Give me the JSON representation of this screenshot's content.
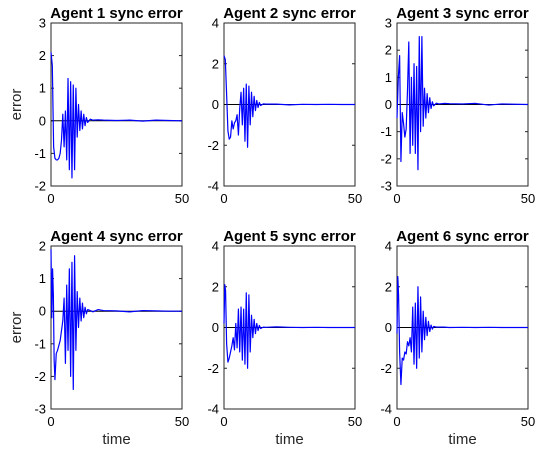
{
  "figure": {
    "xlabel": "time",
    "ylabel": "error",
    "line_color": "#0000ff",
    "zero_line_color": "#000000"
  },
  "chart_data": [
    {
      "type": "line",
      "title": "Agent 1 sync error",
      "xlabel": "",
      "ylabel": "error",
      "xlim": [
        0,
        50
      ],
      "ylim": [
        -2,
        3
      ],
      "xticks": [
        0,
        50
      ],
      "yticks": [
        -2,
        -1,
        0,
        1,
        2,
        3
      ],
      "grid": false,
      "series": [
        {
          "values": [
            [
              0,
              2.1
            ],
            [
              0.5,
              1.7
            ],
            [
              1,
              -0.8
            ],
            [
              1.5,
              -1.15
            ],
            [
              2,
              -1.2
            ],
            [
              2.5,
              -1.2
            ],
            [
              3,
              -1.15
            ],
            [
              3.5,
              -1.0
            ],
            [
              4,
              -0.6
            ],
            [
              4.5,
              0.2
            ],
            [
              5,
              -0.8
            ],
            [
              5.5,
              0.3
            ],
            [
              6,
              -1.2
            ],
            [
              6.5,
              1.3
            ],
            [
              7,
              -1.5
            ],
            [
              7.5,
              1.2
            ],
            [
              8,
              -1.75
            ],
            [
              8.5,
              1.1
            ],
            [
              9,
              -1.5
            ],
            [
              9.5,
              1.0
            ],
            [
              10,
              -0.5
            ],
            [
              10.5,
              0.5
            ],
            [
              11,
              -0.3
            ],
            [
              11.5,
              0.3
            ],
            [
              12,
              -0.25
            ],
            [
              12.5,
              0.2
            ],
            [
              13,
              -0.15
            ],
            [
              13.5,
              0.1
            ],
            [
              14,
              -0.05
            ],
            [
              15,
              0.05
            ],
            [
              16,
              0.02
            ],
            [
              18,
              0.03
            ],
            [
              20,
              0.02
            ],
            [
              25,
              0.01
            ],
            [
              30,
              0.02
            ],
            [
              35,
              -0.01
            ],
            [
              40,
              0.02
            ],
            [
              45,
              0.01
            ],
            [
              50,
              0
            ]
          ]
        }
      ]
    },
    {
      "type": "line",
      "title": "Agent 2 sync error",
      "xlabel": "",
      "ylabel": "",
      "xlim": [
        0,
        50
      ],
      "ylim": [
        -4,
        4
      ],
      "xticks": [
        0,
        50
      ],
      "yticks": [
        -4,
        -2,
        0,
        2,
        4
      ],
      "grid": false,
      "series": [
        {
          "values": [
            [
              0,
              2.4
            ],
            [
              0.5,
              2.2
            ],
            [
              1,
              0.5
            ],
            [
              1.5,
              -1.3
            ],
            [
              2,
              -1.7
            ],
            [
              2.5,
              -1.6
            ],
            [
              3,
              -0.8
            ],
            [
              3.5,
              -1.2
            ],
            [
              4,
              -0.9
            ],
            [
              4.5,
              -0.8
            ],
            [
              5,
              -0.5
            ],
            [
              5.5,
              -1.5
            ],
            [
              6,
              -0.2
            ],
            [
              6.5,
              0.6
            ],
            [
              7,
              -1.0
            ],
            [
              7.5,
              0.8
            ],
            [
              8,
              -1.8
            ],
            [
              8.5,
              1.0
            ],
            [
              9,
              -2.1
            ],
            [
              9.5,
              0.9
            ],
            [
              10,
              -1.0
            ],
            [
              10.5,
              0.6
            ],
            [
              11,
              -0.6
            ],
            [
              11.5,
              0.4
            ],
            [
              12,
              -0.3
            ],
            [
              12.5,
              0.2
            ],
            [
              13,
              -0.15
            ],
            [
              13.5,
              0.1
            ],
            [
              14,
              -0.05
            ],
            [
              15,
              0.03
            ],
            [
              16,
              0.02
            ],
            [
              20,
              0.02
            ],
            [
              25,
              -0.02
            ],
            [
              30,
              0.01
            ],
            [
              35,
              0
            ],
            [
              40,
              0.01
            ],
            [
              45,
              0
            ],
            [
              50,
              0
            ]
          ]
        }
      ]
    },
    {
      "type": "line",
      "title": "Agent 3 sync error",
      "xlabel": "",
      "ylabel": "",
      "xlim": [
        0,
        50
      ],
      "ylim": [
        -3,
        3
      ],
      "xticks": [
        0,
        50
      ],
      "yticks": [
        -3,
        -2,
        -1,
        0,
        1,
        2,
        3
      ],
      "grid": false,
      "series": [
        {
          "values": [
            [
              0,
              -0.5
            ],
            [
              0.5,
              1.0
            ],
            [
              1,
              1.8
            ],
            [
              1.5,
              -2.1
            ],
            [
              2,
              -0.3
            ],
            [
              2.5,
              -0.7
            ],
            [
              3,
              -1.2
            ],
            [
              3.5,
              -0.9
            ],
            [
              4,
              0.5
            ],
            [
              4.5,
              2.3
            ],
            [
              5,
              -1.8
            ],
            [
              5.5,
              1.0
            ],
            [
              6,
              -1.5
            ],
            [
              6.5,
              1.5
            ],
            [
              7,
              -1.8
            ],
            [
              7.5,
              1.4
            ],
            [
              8,
              -2.4
            ],
            [
              8.5,
              2.5
            ],
            [
              9,
              -1.0
            ],
            [
              9.5,
              2.5
            ],
            [
              10,
              -0.8
            ],
            [
              10.5,
              0.6
            ],
            [
              11,
              -0.5
            ],
            [
              11.5,
              0.4
            ],
            [
              12,
              -0.3
            ],
            [
              12.5,
              0.25
            ],
            [
              13,
              -0.15
            ],
            [
              13.5,
              0.1
            ],
            [
              14,
              -0.05
            ],
            [
              15,
              0.05
            ],
            [
              16,
              0.02
            ],
            [
              18,
              0.04
            ],
            [
              20,
              0.03
            ],
            [
              25,
              0.02
            ],
            [
              30,
              0.04
            ],
            [
              35,
              -0.02
            ],
            [
              40,
              0.02
            ],
            [
              45,
              0.01
            ],
            [
              50,
              0
            ]
          ]
        }
      ]
    },
    {
      "type": "line",
      "title": "Agent 4 sync error",
      "xlabel": "time",
      "ylabel": "error",
      "xlim": [
        0,
        50
      ],
      "ylim": [
        -3,
        2
      ],
      "xticks": [
        0,
        50
      ],
      "yticks": [
        -3,
        -2,
        -1,
        0,
        1,
        2
      ],
      "grid": false,
      "series": [
        {
          "values": [
            [
              0,
              1.9
            ],
            [
              0.3,
              -0.2
            ],
            [
              0.6,
              1.3
            ],
            [
              0.9,
              0.5
            ],
            [
              1.2,
              -1.5
            ],
            [
              1.5,
              -2.1
            ],
            [
              2,
              -1.3
            ],
            [
              2.5,
              -1.2
            ],
            [
              3,
              -1.05
            ],
            [
              3.5,
              -0.9
            ],
            [
              4,
              -0.6
            ],
            [
              4.5,
              -0.3
            ],
            [
              5,
              0.4
            ],
            [
              5.5,
              -1.6
            ],
            [
              6,
              0.8
            ],
            [
              6.5,
              -1.2
            ],
            [
              7,
              1.3
            ],
            [
              7.5,
              -2.0
            ],
            [
              8,
              1.5
            ],
            [
              8.5,
              -2.4
            ],
            [
              9,
              1.7
            ],
            [
              9.5,
              -1.2
            ],
            [
              10,
              0.6
            ],
            [
              10.5,
              -0.5
            ],
            [
              11,
              0.4
            ],
            [
              11.5,
              -0.3
            ],
            [
              12,
              0.25
            ],
            [
              12.5,
              -0.2
            ],
            [
              13,
              0.12
            ],
            [
              13.5,
              -0.08
            ],
            [
              14,
              0.05
            ],
            [
              15,
              0.02
            ],
            [
              16,
              -0.02
            ],
            [
              18,
              0.05
            ],
            [
              20,
              0.02
            ],
            [
              25,
              0.01
            ],
            [
              30,
              -0.02
            ],
            [
              35,
              0.02
            ],
            [
              40,
              0.01
            ],
            [
              45,
              0
            ],
            [
              50,
              0
            ]
          ]
        }
      ]
    },
    {
      "type": "line",
      "title": "Agent 5 sync error",
      "xlabel": "time",
      "ylabel": "",
      "xlim": [
        0,
        50
      ],
      "ylim": [
        -4,
        4
      ],
      "xticks": [
        0,
        50
      ],
      "yticks": [
        -4,
        -2,
        0,
        2,
        4
      ],
      "grid": false,
      "series": [
        {
          "values": [
            [
              0,
              0.2
            ],
            [
              0.3,
              2.1
            ],
            [
              0.6,
              1.8
            ],
            [
              1,
              -0.8
            ],
            [
              1.5,
              -1.7
            ],
            [
              2,
              -1.5
            ],
            [
              2.5,
              -1.2
            ],
            [
              3,
              -0.9
            ],
            [
              3.5,
              -0.5
            ],
            [
              4,
              -1.1
            ],
            [
              4.5,
              0.2
            ],
            [
              5,
              -1.0
            ],
            [
              5.5,
              0.9
            ],
            [
              6,
              -1.2
            ],
            [
              6.5,
              1.0
            ],
            [
              7,
              -1.6
            ],
            [
              7.5,
              0.9
            ],
            [
              8,
              -1.8
            ],
            [
              8.5,
              1.7
            ],
            [
              9,
              -2.0
            ],
            [
              9.5,
              1.6
            ],
            [
              10,
              -1.2
            ],
            [
              10.5,
              0.6
            ],
            [
              11,
              -0.5
            ],
            [
              11.5,
              0.4
            ],
            [
              12,
              -0.3
            ],
            [
              12.5,
              0.2
            ],
            [
              13,
              -0.15
            ],
            [
              13.5,
              0.1
            ],
            [
              14,
              -0.05
            ],
            [
              15,
              0.02
            ],
            [
              16,
              0.01
            ],
            [
              20,
              0.03
            ],
            [
              25,
              0.01
            ],
            [
              30,
              0
            ],
            [
              35,
              0.01
            ],
            [
              40,
              0
            ],
            [
              45,
              0
            ],
            [
              50,
              0
            ]
          ]
        }
      ]
    },
    {
      "type": "line",
      "title": "Agent 6 sync error",
      "xlabel": "time",
      "ylabel": "",
      "xlim": [
        0,
        50
      ],
      "ylim": [
        -4,
        4
      ],
      "xticks": [
        0,
        50
      ],
      "yticks": [
        -4,
        -2,
        0,
        2,
        4
      ],
      "grid": false,
      "series": [
        {
          "values": [
            [
              0,
              -0.3
            ],
            [
              0.3,
              2.5
            ],
            [
              0.6,
              1.6
            ],
            [
              1,
              -1.2
            ],
            [
              1.5,
              -2.8
            ],
            [
              2,
              -1.5
            ],
            [
              2.5,
              -1.6
            ],
            [
              3,
              -1.2
            ],
            [
              3.5,
              -1.3
            ],
            [
              4,
              -0.7
            ],
            [
              4.5,
              -0.9
            ],
            [
              5,
              -0.5
            ],
            [
              5.5,
              -1.2
            ],
            [
              6,
              1.0
            ],
            [
              6.5,
              -1.8
            ],
            [
              7,
              1.2
            ],
            [
              7.5,
              -2.0
            ],
            [
              8,
              2.0
            ],
            [
              8.5,
              -1.5
            ],
            [
              9,
              1.5
            ],
            [
              9.5,
              -1.2
            ],
            [
              10,
              0.8
            ],
            [
              10.5,
              -0.6
            ],
            [
              11,
              0.5
            ],
            [
              11.5,
              -0.4
            ],
            [
              12,
              0.3
            ],
            [
              12.5,
              -0.2
            ],
            [
              13,
              0.12
            ],
            [
              13.5,
              -0.08
            ],
            [
              14,
              0.05
            ],
            [
              15,
              0.02
            ],
            [
              18,
              0.02
            ],
            [
              20,
              0
            ],
            [
              25,
              0.01
            ],
            [
              30,
              0
            ],
            [
              35,
              0.01
            ],
            [
              40,
              0
            ],
            [
              45,
              0
            ],
            [
              50,
              0
            ]
          ]
        }
      ]
    }
  ]
}
